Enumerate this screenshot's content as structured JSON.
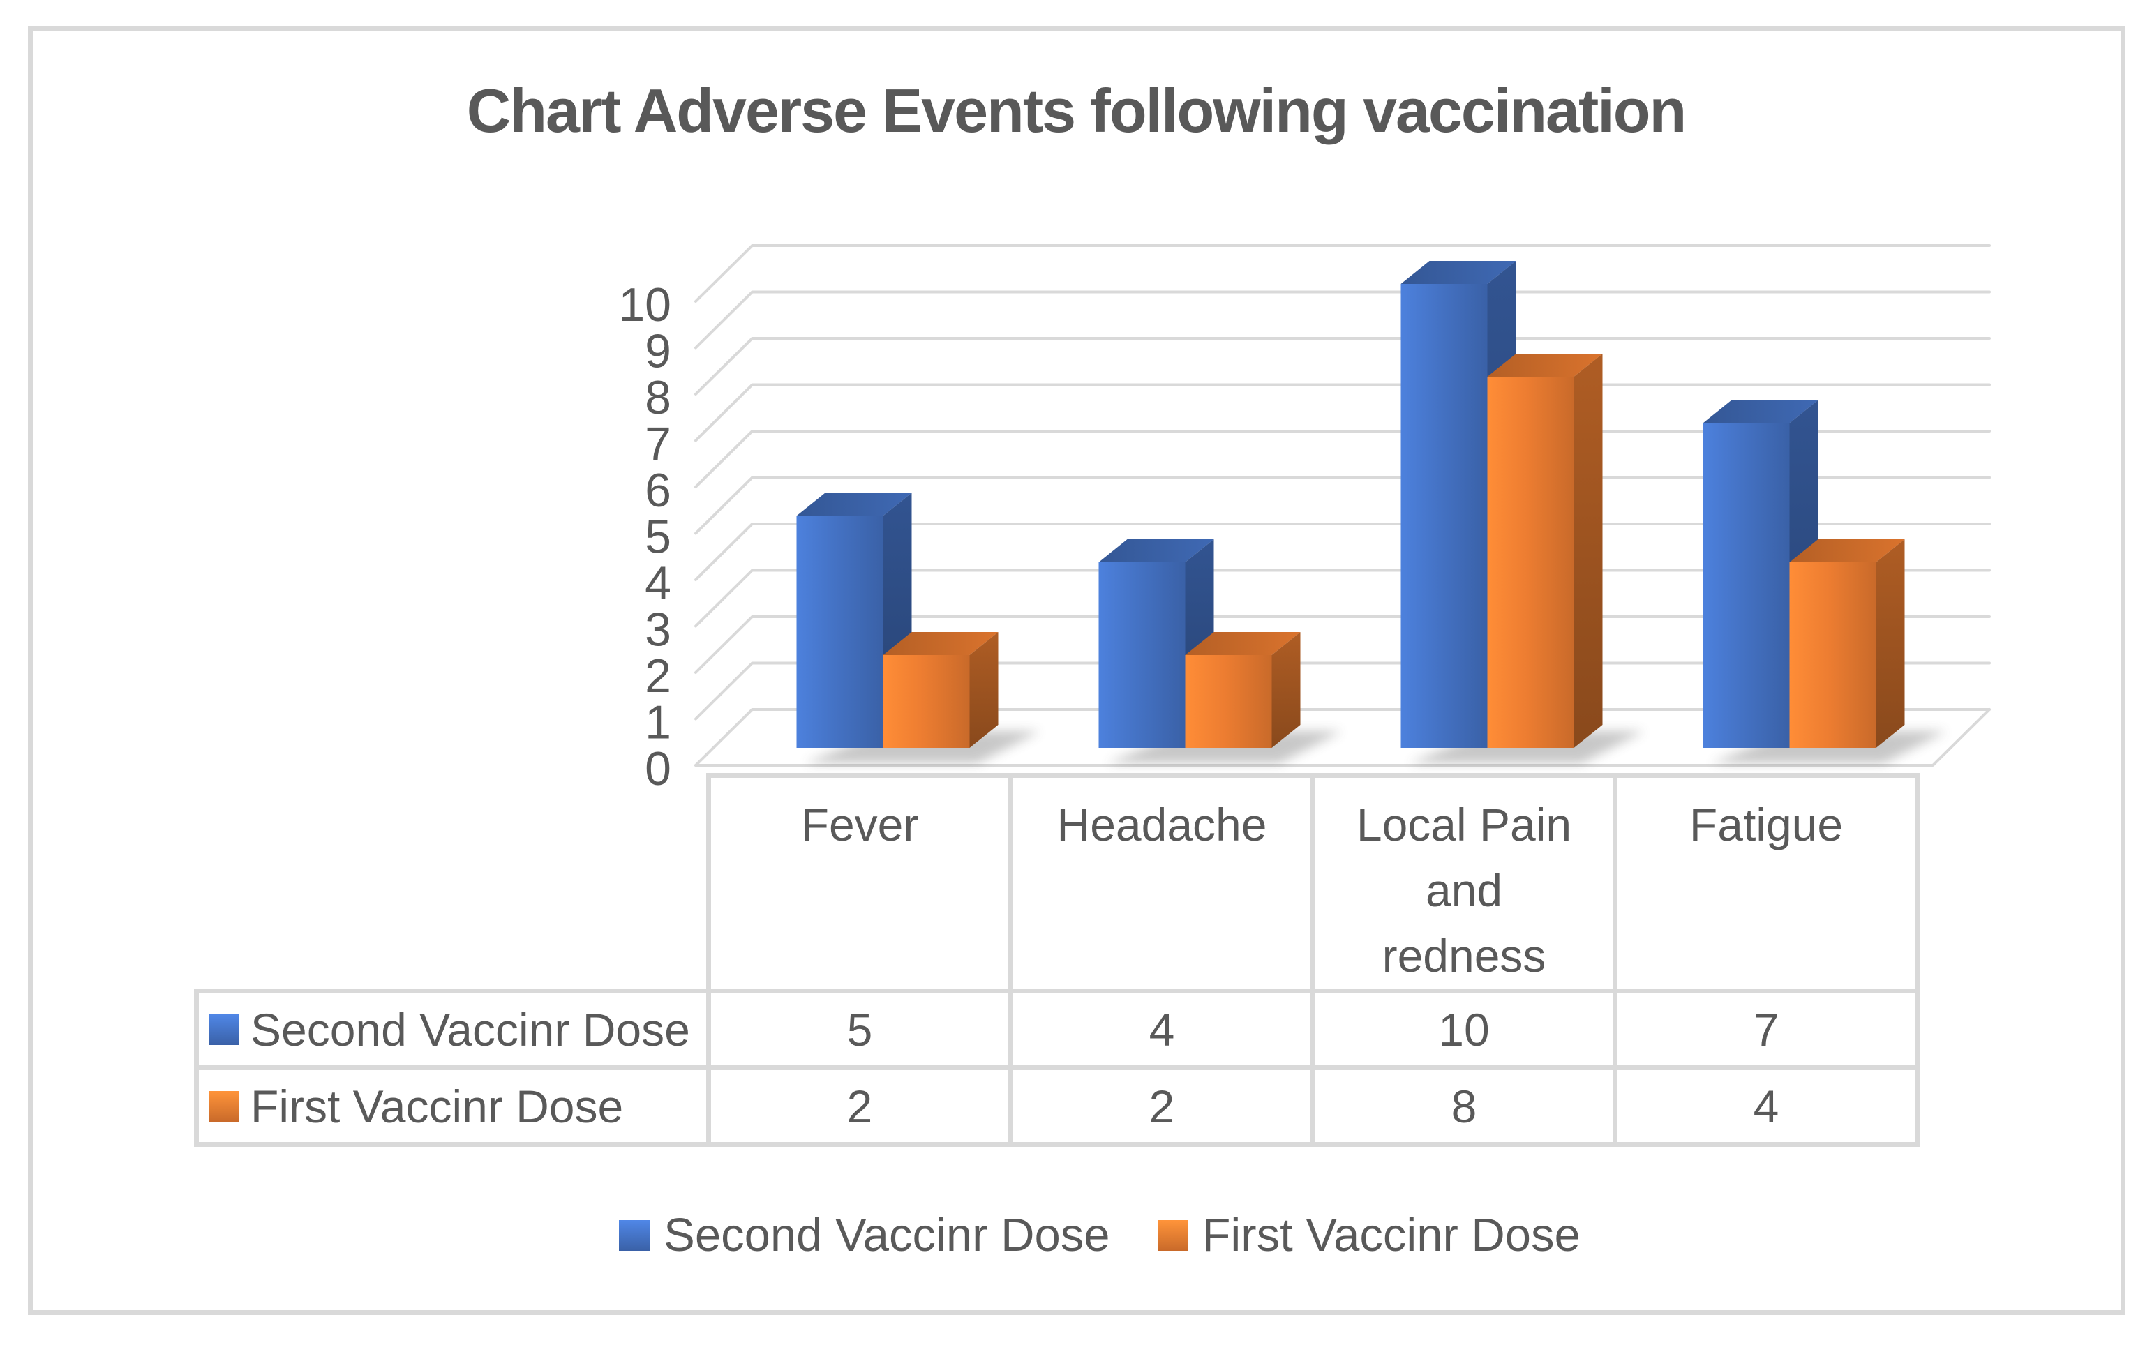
{
  "title": "Chart Adverse Events following vaccination",
  "colors": {
    "text": "#595959",
    "grid": "#D9D9D9",
    "frame_border": "#D9D9D9",
    "background": "#FFFFFF",
    "series_blue": "#4472C4",
    "series_orange": "#ED7D31"
  },
  "chart_data": {
    "type": "bar",
    "variant": "3d-clustered-column",
    "title": "Chart Adverse Events following vaccination",
    "categories": [
      "Fever",
      "Headache",
      "Local Pain and redness",
      "Fatigue"
    ],
    "series": [
      {
        "name": "Second Vaccinr Dose",
        "color": "#4472C4",
        "values": [
          5,
          4,
          10,
          7
        ]
      },
      {
        "name": "First Vaccinr Dose",
        "color": "#ED7D31",
        "values": [
          2,
          2,
          8,
          4
        ]
      }
    ],
    "xlabel": "",
    "ylabel": "",
    "ylim": [
      0,
      10
    ],
    "yticks": [
      0,
      1,
      2,
      3,
      4,
      5,
      6,
      7,
      8,
      9,
      10
    ],
    "grid": true,
    "legend_position": "bottom",
    "data_table_shown": true
  }
}
